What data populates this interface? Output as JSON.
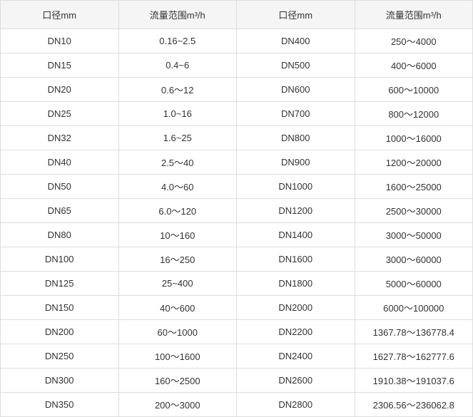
{
  "table": {
    "columns": [
      "口径mm",
      "流量范围m³/h",
      "口径mm",
      "流量范围m³/h"
    ],
    "rows": [
      [
        "DN10",
        "0.16~2.5",
        "DN400",
        "250～4000"
      ],
      [
        "DN15",
        "0.4~6",
        "DN500",
        "400～6000"
      ],
      [
        "DN20",
        "0.6～12",
        "DN600",
        "600～10000"
      ],
      [
        "DN25",
        "1.0~16",
        "DN700",
        "800～12000"
      ],
      [
        "DN32",
        "1.6~25",
        "DN800",
        "1000～16000"
      ],
      [
        "DN40",
        "2.5～40",
        "DN900",
        "1200～20000"
      ],
      [
        "DN50",
        "4.0～60",
        "DN1000",
        "1600～25000"
      ],
      [
        "DN65",
        "6.0～120",
        "DN1200",
        "2500～30000"
      ],
      [
        "DN80",
        "10～160",
        "DN1400",
        "3000～50000"
      ],
      [
        "DN100",
        "16～250",
        "DN1600",
        "3000～60000"
      ],
      [
        "DN125",
        "25~400",
        "DN1800",
        "5000～60000"
      ],
      [
        "DN150",
        "40～600",
        "DN2000",
        "6000～100000"
      ],
      [
        "DN200",
        "60～1000",
        "DN2200",
        "1367.78～136778.4"
      ],
      [
        "DN250",
        "100～1600",
        "DN2400",
        "1627.78～162777.6"
      ],
      [
        "DN300",
        "160～2500",
        "DN2600",
        "1910.38～191037.6"
      ],
      [
        "DN350",
        "200～3000",
        "DN2800",
        "2306.56～236062.8"
      ]
    ],
    "header_bg": "#f5f5f5",
    "border_color": "#dddddd",
    "text_color": "#333333",
    "fontsize": 13
  }
}
